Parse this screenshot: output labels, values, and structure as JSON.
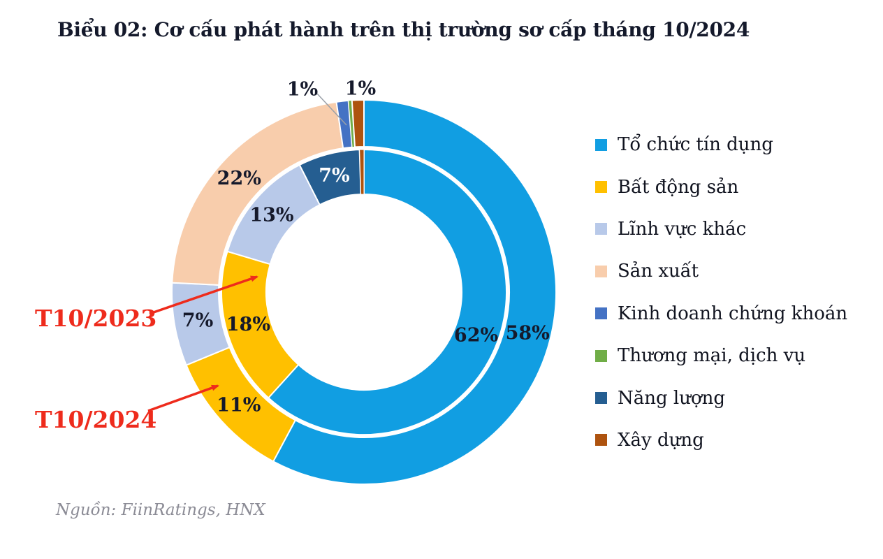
{
  "title": "Biểu 02: Cơ cấu phát hành trên thị trường sơ cấp tháng 10/2024",
  "source_note": "Nguồn: FiinRatings, HNX",
  "annotations": {
    "inner_ring_label": "T10/2023",
    "outer_ring_label": "T10/2024",
    "arrow_color": "#EE2B1C"
  },
  "chart_data": {
    "type": "pie",
    "subtype": "double-ring-donut",
    "title": "Biểu 02: Cơ cấu phát hành trên thị trường sơ cấp tháng 10/2024",
    "legend_position": "right",
    "categories": [
      "Tổ chức tín dụng",
      "Bất động sản",
      "Lĩnh vực khác",
      "Sản xuất",
      "Kinh doanh chứng khoán",
      "Thương mại, dịch vụ",
      "Năng lượng",
      "Xây dựng"
    ],
    "colors": [
      "#119EE2",
      "#FFC000",
      "#B8C9E9",
      "#F8CDAC",
      "#4472C4",
      "#70AD47",
      "#255E91",
      "#AE530F"
    ],
    "series": [
      {
        "name": "T10/2023",
        "ring": "inner",
        "values": [
          62,
          18,
          13,
          0,
          0,
          0,
          7,
          0.5
        ],
        "labels": [
          "62%",
          "18%",
          "13%",
          "",
          "",
          "",
          "7%",
          ""
        ]
      },
      {
        "name": "T10/2024",
        "ring": "outer",
        "values": [
          58,
          11,
          7,
          22,
          1,
          0.3,
          0,
          1
        ],
        "labels": [
          "58%",
          "11%",
          "7%",
          "22%",
          "1%",
          "",
          "",
          "1%"
        ]
      }
    ]
  }
}
